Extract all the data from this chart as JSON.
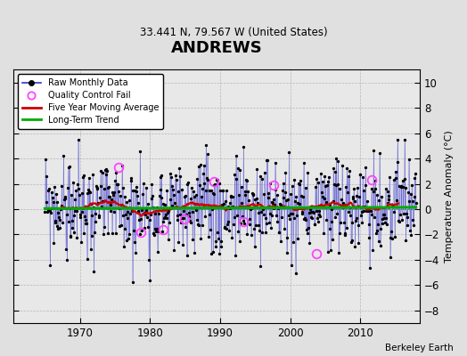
{
  "title": "ANDREWS",
  "subtitle": "33.441 N, 79.567 W (United States)",
  "ylabel": "Temperature Anomaly (°C)",
  "attribution": "Berkeley Earth",
  "ylim": [
    -9,
    11
  ],
  "yticks": [
    -8,
    -6,
    -4,
    -2,
    0,
    2,
    4,
    6,
    8,
    10
  ],
  "xlim": [
    1960.5,
    2018.5
  ],
  "xticks": [
    1970,
    1980,
    1990,
    2000,
    2010
  ],
  "bg_color": "#e0e0e0",
  "plot_bg": "#e8e8e8",
  "line_color": "#3333cc",
  "ma_color": "#cc0000",
  "trend_color": "#00aa00",
  "qc_color": "#ff44ff",
  "seed": 99,
  "n_months": 636,
  "start_year": 1965.0,
  "trend_slope": 0.00015,
  "trend_intercept": 0.05,
  "ma_window": 60,
  "noise_scale": 1.9,
  "qc_positions": [
    0.197,
    0.257,
    0.318,
    0.375,
    0.456,
    0.535,
    0.615,
    0.73,
    0.88
  ],
  "qc_values": [
    3.3,
    -1.8,
    -1.6,
    -0.8,
    2.2,
    -1.0,
    1.9,
    -3.5,
    2.3
  ]
}
